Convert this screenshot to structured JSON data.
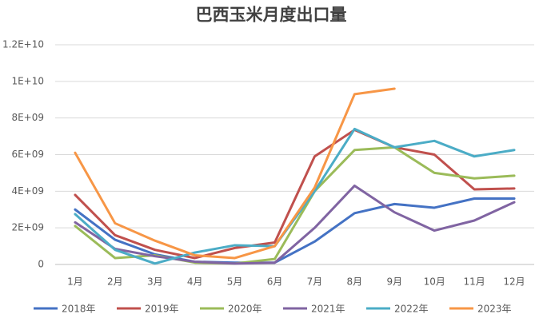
{
  "chart_data": {
    "type": "line",
    "title": "巴西玉米月度出口量",
    "categories": [
      "1月",
      "2月",
      "3月",
      "4月",
      "5月",
      "6月",
      "7月",
      "8月",
      "9月",
      "10月",
      "11月",
      "12月"
    ],
    "ylim": [
      0,
      12000000000
    ],
    "yticks": [
      0,
      {
        "value": 2000000000,
        "label": "2E+09"
      },
      {
        "value": 4000000000,
        "label": "4E+09"
      },
      {
        "value": 6000000000,
        "label": "6E+09"
      },
      {
        "value": 8000000000,
        "label": "8E+09"
      },
      {
        "value": 10000000000,
        "label": "1E+10"
      },
      {
        "value": 12000000000,
        "label": "1.2E+10"
      }
    ],
    "grid": true,
    "legend": "bottom",
    "series": [
      {
        "name": "2018年",
        "color": "#4472c4",
        "values": [
          3000000000,
          1350000000,
          550000000,
          150000000,
          100000000,
          100000000,
          1250000000,
          2800000000,
          3300000000,
          3100000000,
          3600000000,
          3600000000
        ]
      },
      {
        "name": "2019年",
        "color": "#c0504d",
        "values": [
          3800000000,
          1600000000,
          800000000,
          350000000,
          900000000,
          1200000000,
          5900000000,
          7350000000,
          6400000000,
          6000000000,
          4100000000,
          4150000000
        ]
      },
      {
        "name": "2020年",
        "color": "#9bbb59",
        "values": [
          2100000000,
          350000000,
          500000000,
          100000000,
          50000000,
          300000000,
          4000000000,
          6250000000,
          6400000000,
          5000000000,
          4700000000,
          4850000000
        ]
      },
      {
        "name": "2021年",
        "color": "#8064a2",
        "values": [
          2300000000,
          850000000,
          450000000,
          150000000,
          50000000,
          100000000,
          2000000000,
          4300000000,
          2850000000,
          1850000000,
          2400000000,
          3400000000
        ]
      },
      {
        "name": "2022年",
        "color": "#4bacc6",
        "values": [
          2750000000,
          800000000,
          50000000,
          650000000,
          1050000000,
          1000000000,
          4000000000,
          7400000000,
          6400000000,
          6750000000,
          5900000000,
          6250000000
        ]
      },
      {
        "name": "2023年",
        "color": "#f79646",
        "values": [
          6100000000,
          2250000000,
          1300000000,
          500000000,
          350000000,
          1000000000,
          4200000000,
          9300000000,
          9600000000,
          null,
          null,
          null
        ]
      }
    ]
  }
}
